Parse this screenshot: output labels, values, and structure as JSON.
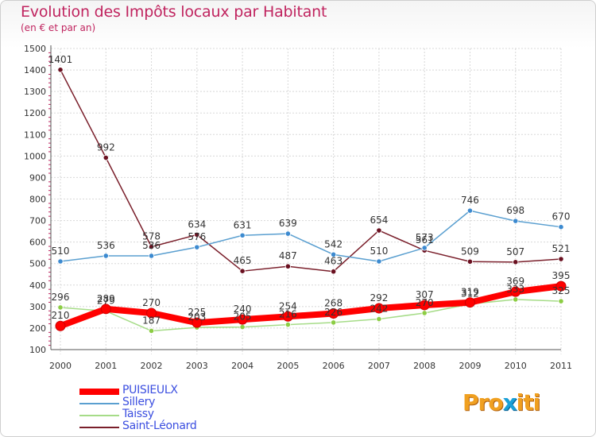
{
  "header": {
    "title": "Evolution des Impôts locaux par Habitant",
    "subtitle": "(en € et par an)"
  },
  "chart_data": {
    "type": "line",
    "title": "Evolution des Impôts locaux par Habitant",
    "subtitle": "(en € et par an)",
    "xlabel": "",
    "ylabel": "",
    "ylim": [
      100,
      1500
    ],
    "ytick_step": 100,
    "grid": true,
    "legend_position": "bottom-left",
    "categories": [
      "2000",
      "2001",
      "2002",
      "2003",
      "2004",
      "2005",
      "2006",
      "2007",
      "2008",
      "2009",
      "2010",
      "2011"
    ],
    "series": [
      {
        "name": "Saint-Léonard",
        "color": "#7a1f2b",
        "marker_color": "#6a1020",
        "values": [
          1401,
          992,
          578,
          634,
          465,
          487,
          463,
          654,
          561,
          509,
          507,
          521
        ]
      },
      {
        "name": "Sillery",
        "color": "#5a9fd0",
        "marker_color": "#3c8ad0",
        "values": [
          510,
          536,
          536,
          576,
          631,
          639,
          542,
          510,
          573,
          746,
          698,
          670
        ]
      },
      {
        "name": "Taissy",
        "color": "#a6dc88",
        "marker_color": "#8ccd44",
        "values": [
          296,
          279,
          187,
          203,
          205,
          216,
          226,
          242,
          270,
          312,
          333,
          325
        ]
      },
      {
        "name": "PUISIEULX",
        "color": "#ff0000",
        "marker_color": "#ff0000",
        "values": [
          210,
          289,
          270,
          225,
          240,
          254,
          268,
          292,
          307,
          319,
          369,
          395
        ]
      }
    ],
    "data_labels": {
      "Saint-Léonard": [
        "1401",
        "992",
        "578",
        "634",
        "465",
        "487",
        "463",
        "654",
        "561",
        "509",
        "507",
        "521"
      ],
      "Sillery": [
        "510",
        "536",
        "536",
        "576",
        "631",
        "639",
        "542",
        "510",
        "573",
        "746",
        "698",
        "670"
      ],
      "Taissy": [
        "296",
        "279",
        "187",
        "203",
        "205",
        "216",
        "226",
        "242",
        "270",
        "312",
        "333",
        "325"
      ],
      "PUISIEULX": [
        "210",
        "289",
        "270",
        "225",
        "240",
        "254",
        "268",
        "292",
        "307",
        "319",
        "369",
        "395"
      ]
    }
  },
  "legend": {
    "items": [
      {
        "label": "PUISIEULX",
        "color": "#ff0000",
        "width": 8
      },
      {
        "label": "Sillery",
        "color": "#5a9fd0",
        "width": 2
      },
      {
        "label": "Taissy",
        "color": "#a6dc88",
        "width": 2
      },
      {
        "label": "Saint-Léonard",
        "color": "#7a1f2b",
        "width": 2
      }
    ]
  },
  "brand": {
    "logo_text_a": "Pro",
    "logo_text_x": "x",
    "logo_text_b": "iti"
  }
}
